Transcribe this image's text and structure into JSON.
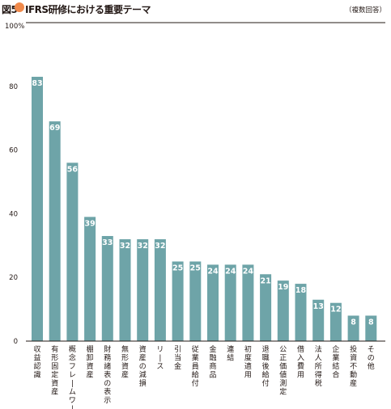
{
  "figure_label": "図5",
  "title": "IFRS研修における重要テーマ",
  "note": "（複数回答）",
  "colors": {
    "bar": "#6ea4a8",
    "dot": "#f08a4b",
    "axis": "#231815"
  },
  "chart_data": {
    "type": "bar",
    "title": "IFRS研修における重要テーマ",
    "ylabel": "",
    "xlabel": "",
    "ylim": [
      0,
      100
    ],
    "yticks": [
      0,
      20,
      40,
      60,
      80
    ],
    "top_tick_label": "100%",
    "grid": false,
    "categories": [
      "収益認識",
      "有形固定資産",
      "概念フレームワーク",
      "棚卸資産",
      "財務諸表の表示",
      "無形資産",
      "資産の減損",
      "リース",
      "引当金",
      "従業員給付",
      "金融商品",
      "連結",
      "初度適用",
      "退職後給付",
      "公正価値測定",
      "借入費用",
      "法人所得税",
      "企業結合",
      "投資不動産",
      "その他"
    ],
    "values": [
      83,
      69,
      56,
      39,
      33,
      32,
      32,
      32,
      25,
      25,
      24,
      24,
      24,
      21,
      19,
      18,
      13,
      12,
      8,
      8
    ]
  }
}
